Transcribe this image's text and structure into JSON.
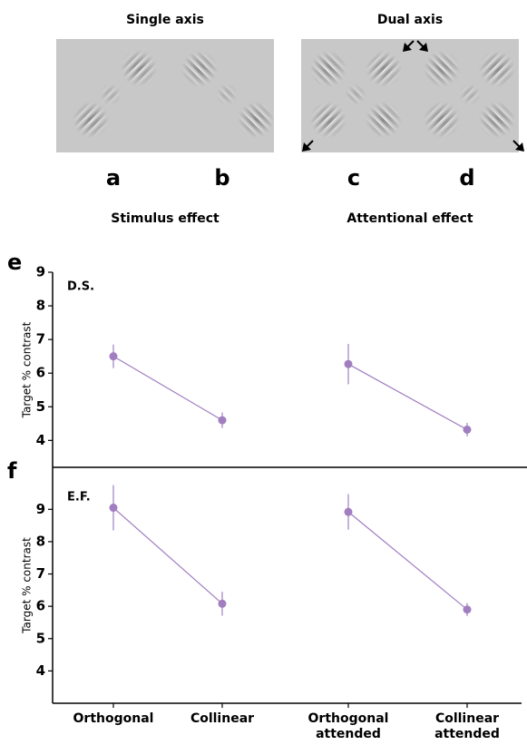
{
  "stimulus": {
    "headers": [
      "Single axis",
      "Dual axis"
    ],
    "letters": [
      "a",
      "b",
      "c",
      "d"
    ],
    "captions": [
      "Stimulus effect",
      "Attentional effect"
    ]
  },
  "chart_data": [
    {
      "type": "line",
      "panel": "e",
      "subject": "D.S.",
      "y_label": "Target % contrast",
      "categories": [
        null,
        null,
        null,
        null
      ],
      "values": [
        6.5,
        4.6,
        6.27,
        4.32
      ],
      "errors": [
        0.35,
        0.23,
        0.6,
        0.2
      ],
      "pairs": [
        [
          0,
          1
        ],
        [
          2,
          3
        ]
      ],
      "color": "#a07ec0",
      "ylim": [
        3.2,
        9
      ],
      "yticks": [
        4,
        5,
        6,
        7,
        8,
        9
      ]
    },
    {
      "type": "line",
      "panel": "f",
      "subject": "E.F.",
      "y_label": "Target % contrast",
      "categories": [
        "Orthogonal",
        "Collinear",
        "Orthogonal attended",
        "Collinear attended"
      ],
      "values": [
        9.05,
        6.08,
        8.92,
        5.9
      ],
      "errors": [
        0.7,
        0.37,
        0.55,
        0.2
      ],
      "pairs": [
        [
          0,
          1
        ],
        [
          2,
          3
        ]
      ],
      "color": "#a07ec0",
      "ylim": [
        3.0,
        10.3
      ],
      "yticks": [
        4,
        5,
        6,
        7,
        8,
        9
      ]
    }
  ]
}
